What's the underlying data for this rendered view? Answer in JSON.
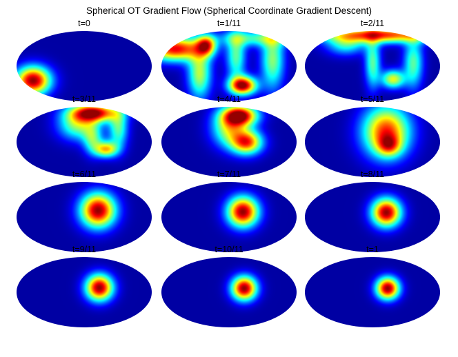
{
  "title": "Spherical OT Gradient Flow (Spherical Coordinate Gradient Descent)",
  "panels": [
    {
      "label": "t=0",
      "blobs": [
        {
          "u": 0.12,
          "v": 0.7,
          "sx": 0.09,
          "sy": 0.14,
          "a": 1.0
        }
      ]
    },
    {
      "label": "t=1/11",
      "blobs": [
        {
          "u": 0.6,
          "v": 0.77,
          "sx": 0.07,
          "sy": 0.09,
          "a": 1.0
        },
        {
          "u": 0.1,
          "v": 0.25,
          "sx": 0.14,
          "sy": 0.12,
          "a": 0.9
        },
        {
          "u": 0.33,
          "v": 0.2,
          "sx": 0.05,
          "sy": 0.1,
          "a": 0.7
        },
        {
          "u": 0.28,
          "v": 0.6,
          "sx": 0.06,
          "sy": 0.25,
          "a": 0.55
        },
        {
          "u": 0.82,
          "v": 0.4,
          "sx": 0.06,
          "sy": 0.3,
          "a": 0.5
        },
        {
          "u": 0.55,
          "v": 0.35,
          "sx": 0.05,
          "sy": 0.25,
          "a": 0.45
        },
        {
          "u": 0.7,
          "v": 0.1,
          "sx": 0.2,
          "sy": 0.08,
          "a": 0.4
        }
      ]
    },
    {
      "label": "t=2/11",
      "blobs": [
        {
          "u": 0.55,
          "v": 0.05,
          "sx": 0.3,
          "sy": 0.08,
          "a": 0.85
        },
        {
          "u": 0.65,
          "v": 0.68,
          "sx": 0.06,
          "sy": 0.09,
          "a": 0.6
        },
        {
          "u": 0.5,
          "v": 0.45,
          "sx": 0.04,
          "sy": 0.25,
          "a": 0.45
        },
        {
          "u": 0.8,
          "v": 0.45,
          "sx": 0.05,
          "sy": 0.25,
          "a": 0.45
        },
        {
          "u": 0.3,
          "v": 0.2,
          "sx": 0.1,
          "sy": 0.1,
          "a": 0.35
        }
      ]
    },
    {
      "label": "t=3/11",
      "blobs": [
        {
          "u": 0.57,
          "v": 0.08,
          "sx": 0.12,
          "sy": 0.09,
          "a": 0.95
        },
        {
          "u": 0.66,
          "v": 0.6,
          "sx": 0.06,
          "sy": 0.08,
          "a": 0.65
        },
        {
          "u": 0.45,
          "v": 0.25,
          "sx": 0.1,
          "sy": 0.15,
          "a": 0.5
        },
        {
          "u": 0.75,
          "v": 0.3,
          "sx": 0.05,
          "sy": 0.2,
          "a": 0.45
        },
        {
          "u": 0.56,
          "v": 0.45,
          "sx": 0.05,
          "sy": 0.15,
          "a": 0.4
        }
      ]
    },
    {
      "label": "t=4/11",
      "blobs": [
        {
          "u": 0.58,
          "v": 0.12,
          "sx": 0.09,
          "sy": 0.1,
          "a": 0.95
        },
        {
          "u": 0.63,
          "v": 0.5,
          "sx": 0.08,
          "sy": 0.12,
          "a": 0.8
        },
        {
          "u": 0.5,
          "v": 0.3,
          "sx": 0.09,
          "sy": 0.18,
          "a": 0.55
        }
      ]
    },
    {
      "label": "t=5/11",
      "blobs": [
        {
          "u": 0.6,
          "v": 0.35,
          "sx": 0.12,
          "sy": 0.25,
          "a": 0.85
        },
        {
          "u": 0.62,
          "v": 0.55,
          "sx": 0.06,
          "sy": 0.1,
          "a": 0.4
        }
      ]
    },
    {
      "label": "t=6/11",
      "blobs": [
        {
          "u": 0.6,
          "v": 0.4,
          "sx": 0.09,
          "sy": 0.17,
          "a": 1.0
        }
      ]
    },
    {
      "label": "t=7/11",
      "blobs": [
        {
          "u": 0.6,
          "v": 0.42,
          "sx": 0.08,
          "sy": 0.15,
          "a": 1.0
        }
      ]
    },
    {
      "label": "t=8/11",
      "blobs": [
        {
          "u": 0.6,
          "v": 0.43,
          "sx": 0.075,
          "sy": 0.14,
          "a": 1.0
        }
      ]
    },
    {
      "label": "t=9/11",
      "blobs": [
        {
          "u": 0.61,
          "v": 0.43,
          "sx": 0.07,
          "sy": 0.13,
          "a": 1.0
        }
      ]
    },
    {
      "label": "t=10/11",
      "blobs": [
        {
          "u": 0.61,
          "v": 0.44,
          "sx": 0.065,
          "sy": 0.12,
          "a": 1.0
        }
      ]
    },
    {
      "label": "t=1",
      "blobs": [
        {
          "u": 0.61,
          "v": 0.44,
          "sx": 0.06,
          "sy": 0.11,
          "a": 1.0
        }
      ]
    }
  ],
  "colormap": [
    "#00008f",
    "#0000ff",
    "#0080ff",
    "#00ffff",
    "#80ff80",
    "#ffff00",
    "#ff8000",
    "#ff0000",
    "#800000"
  ]
}
